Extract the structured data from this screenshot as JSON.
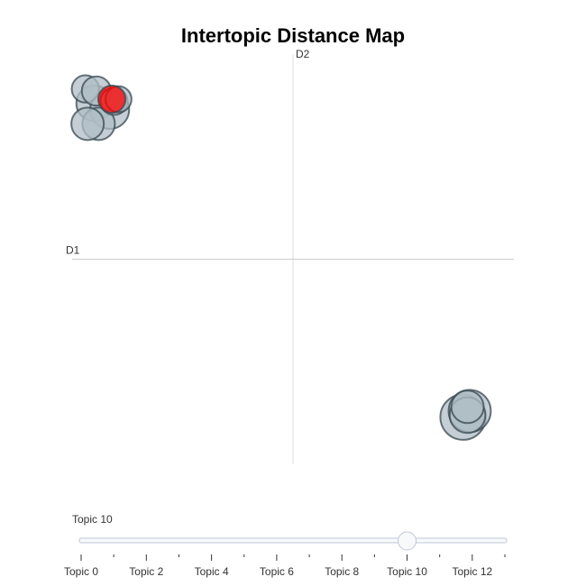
{
  "chart_data": {
    "type": "scatter",
    "title": "Intertopic Distance Map",
    "xlabel": "D1",
    "ylabel": "D2",
    "xlim": [
      -10,
      10
    ],
    "ylim": [
      -10,
      10
    ],
    "grid": false,
    "topics": [
      {
        "id": 0,
        "x": -9.0,
        "y": 7.6,
        "size": 0.55
      },
      {
        "id": 1,
        "x": -8.3,
        "y": 7.3,
        "size": 0.6
      },
      {
        "id": 2,
        "x": -8.8,
        "y": 6.6,
        "size": 0.5
      },
      {
        "id": 3,
        "x": -9.3,
        "y": 6.6,
        "size": 0.5
      },
      {
        "id": 4,
        "x": -9.4,
        "y": 8.3,
        "size": 0.42
      },
      {
        "id": 5,
        "x": -8.9,
        "y": 8.2,
        "size": 0.45
      },
      {
        "id": 6,
        "x": -8.1,
        "y": 7.7,
        "size": 0.42
      },
      {
        "id": 7,
        "x": -7.9,
        "y": 7.8,
        "size": 0.4
      },
      {
        "id": 8,
        "x": 7.7,
        "y": -7.7,
        "size": 0.7
      },
      {
        "id": 9,
        "x": 8.0,
        "y": -7.4,
        "size": 0.65
      },
      {
        "id": 10,
        "x": -8.2,
        "y": 7.8,
        "size": 0.42
      },
      {
        "id": 11,
        "x": 7.9,
        "y": -7.6,
        "size": 0.55
      },
      {
        "id": 12,
        "x": 7.9,
        "y": -7.2,
        "size": 0.5
      }
    ],
    "selected_topic": 10,
    "colors": {
      "bubble_fill": "#b0bec5",
      "bubble_stroke": "#37474f",
      "selected_fill": "#ff0000",
      "axis_line": "#cccccc"
    }
  },
  "slider": {
    "current_label": "Topic 10",
    "value": 10,
    "min": 0,
    "max": 13,
    "tick_labels": [
      "Topic 0",
      "Topic 2",
      "Topic 4",
      "Topic 6",
      "Topic 8",
      "Topic 10",
      "Topic 12"
    ],
    "tick_values": [
      0,
      2,
      4,
      6,
      8,
      10,
      12
    ]
  }
}
